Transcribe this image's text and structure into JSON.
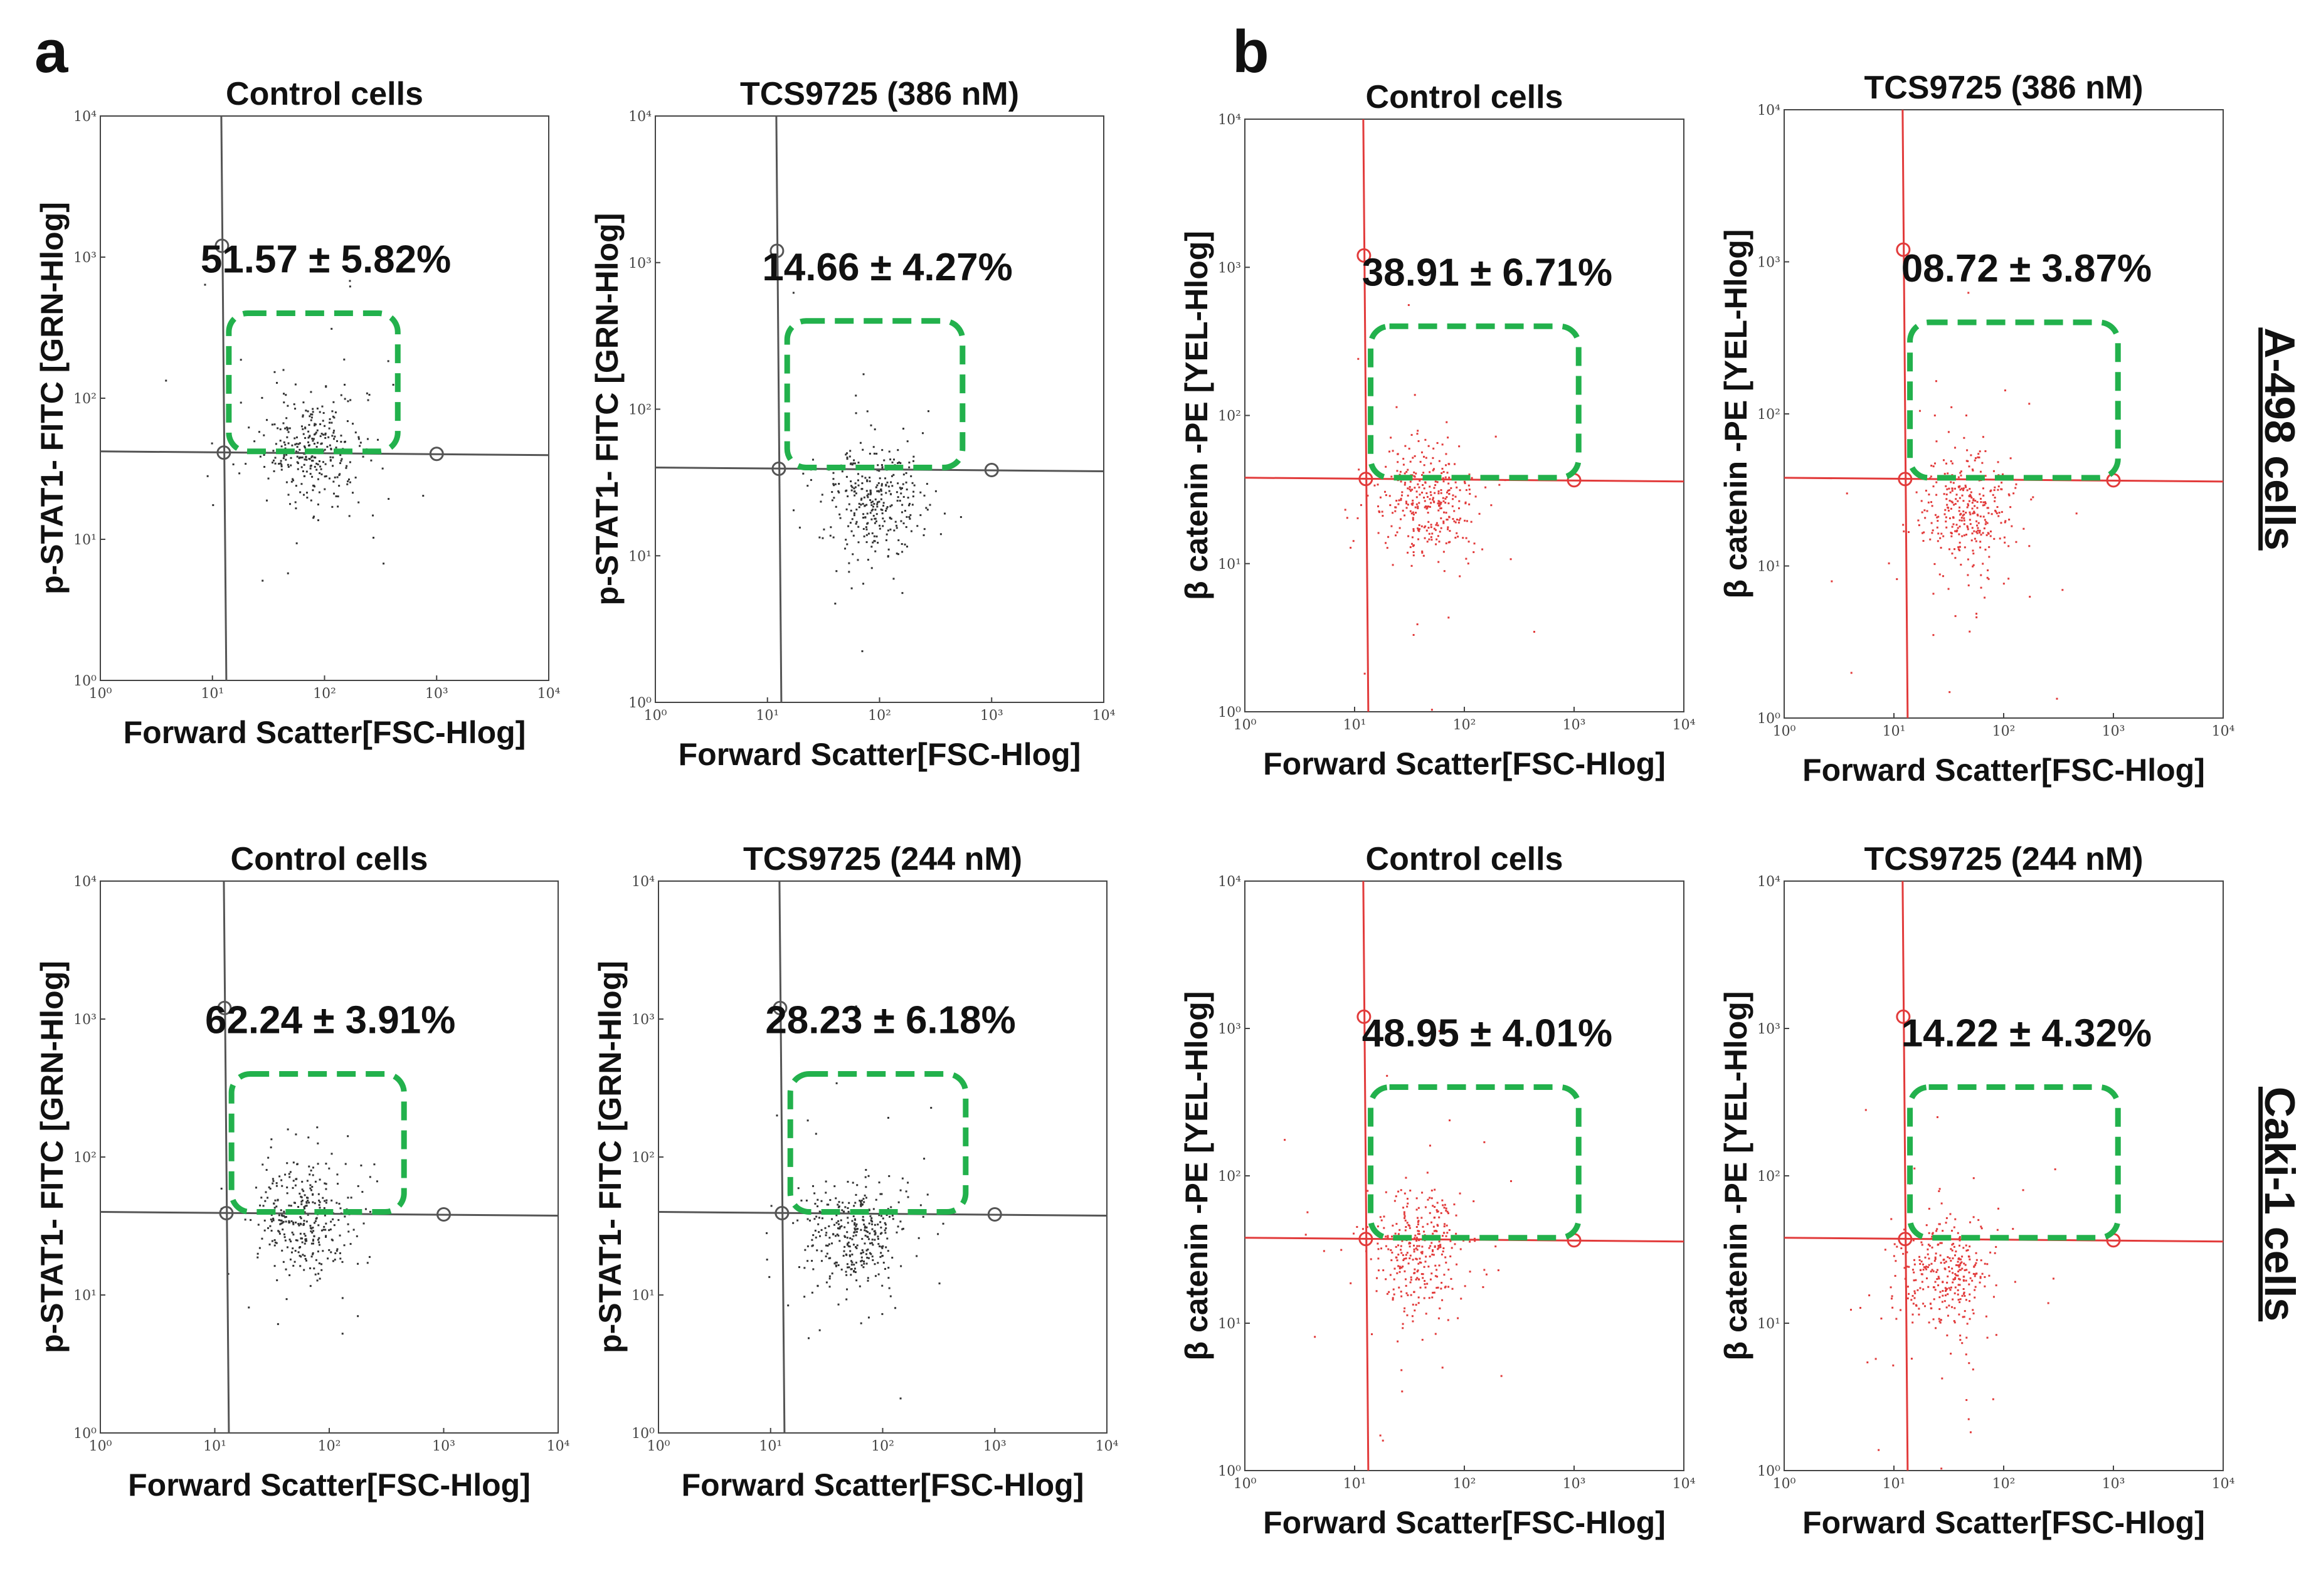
{
  "panel_letters": {
    "a": "a",
    "b": "b"
  },
  "row_labels": {
    "top": "A-498 cells",
    "bottom": "Caki-1 cells"
  },
  "chart_data": [
    {
      "id": "a-top-control",
      "type": "scatter",
      "title": "Control cells",
      "xlabel": "Forward Scatter[FSC-Hlog]",
      "ylabel": "p-STAT1- FITC [GRN-Hlog]",
      "annotation": "51.57 ± 5.82%",
      "color": "#333333",
      "xscale": "log",
      "yscale": "log",
      "xlim": [
        1,
        10000
      ],
      "ylim": [
        1,
        10000
      ],
      "x_ticks": [
        "10⁰",
        "10¹",
        "10²",
        "10³",
        "10⁴"
      ],
      "y_ticks": [
        "10⁰",
        "10¹",
        "10²",
        "10³",
        "10⁴"
      ],
      "x_gate": 12,
      "y_gate": 42,
      "gate_box": {
        "x": [
          14,
          450
        ],
        "y": [
          42,
          400
        ]
      },
      "cluster": {
        "x_center": 80,
        "y_center": 45,
        "count": 320
      }
    },
    {
      "id": "a-top-tcs",
      "type": "scatter",
      "title": "TCS9725 (386 nM)",
      "xlabel": "Forward Scatter[FSC-Hlog]",
      "ylabel": "p-STAT1- FITC [GRN-Hlog]",
      "annotation": "14.66 ± 4.27%",
      "color": "#333333",
      "xscale": "log",
      "yscale": "log",
      "xlim": [
        1,
        10000
      ],
      "ylim": [
        1,
        10000
      ],
      "x_ticks": [
        "10⁰",
        "10¹",
        "10²",
        "10³",
        "10⁴"
      ],
      "y_ticks": [
        "10⁰",
        "10¹",
        "10²",
        "10³",
        "10⁴"
      ],
      "x_gate": 12,
      "y_gate": 40,
      "gate_box": {
        "x": [
          15,
          550
        ],
        "y": [
          40,
          400
        ]
      },
      "cluster": {
        "x_center": 90,
        "y_center": 25,
        "count": 320
      }
    },
    {
      "id": "b-top-control",
      "type": "scatter",
      "title": "Control cells",
      "xlabel": "Forward Scatter[FSC-Hlog]",
      "ylabel": "β catenin -PE [YEL-Hlog]",
      "annotation": "38.91 ± 6.71%",
      "color": "#e23b3b",
      "xscale": "log",
      "yscale": "log",
      "xlim": [
        1,
        10000
      ],
      "ylim": [
        1,
        10000
      ],
      "x_ticks": [
        "10⁰",
        "10¹",
        "10²",
        "10³",
        "10⁴"
      ],
      "y_ticks": [
        "10⁰",
        "10¹",
        "10²",
        "10³",
        "10⁴"
      ],
      "x_gate": 12,
      "y_gate": 38,
      "gate_box": {
        "x": [
          14,
          1100
        ],
        "y": [
          38,
          400
        ]
      },
      "cluster": {
        "x_center": 45,
        "y_center": 28,
        "count": 340
      }
    },
    {
      "id": "b-top-tcs",
      "type": "scatter",
      "title": "TCS9725 (386 nM)",
      "xlabel": "Forward Scatter[FSC-Hlog]",
      "ylabel": "β catenin -PE [YEL-Hlog]",
      "annotation": "08.72 ± 3.87%",
      "color": "#e23b3b",
      "xscale": "log",
      "yscale": "log",
      "xlim": [
        1,
        10000
      ],
      "ylim": [
        1,
        10000
      ],
      "x_ticks": [
        "10⁰",
        "10¹",
        "10²",
        "10³",
        "10⁴"
      ],
      "y_ticks": [
        "10⁰",
        "10¹",
        "10²",
        "10³",
        "10⁴"
      ],
      "x_gate": 12,
      "y_gate": 38,
      "gate_box": {
        "x": [
          14,
          1100
        ],
        "y": [
          38,
          400
        ]
      },
      "cluster": {
        "x_center": 45,
        "y_center": 22,
        "count": 340
      }
    },
    {
      "id": "a-bottom-control",
      "type": "scatter",
      "title": "Control cells",
      "xlabel": "Forward Scatter[FSC-Hlog]",
      "ylabel": "p-STAT1- FITC [GRN-Hlog]",
      "annotation": "62.24 ± 3.91%",
      "color": "#333333",
      "xscale": "log",
      "yscale": "log",
      "xlim": [
        1,
        10000
      ],
      "ylim": [
        1,
        10000
      ],
      "x_ticks": [
        "10⁰",
        "10¹",
        "10²",
        "10³",
        "10⁴"
      ],
      "y_ticks": [
        "10⁰",
        "10¹",
        "10²",
        "10³",
        "10⁴"
      ],
      "x_gate": 12,
      "y_gate": 40,
      "gate_box": {
        "x": [
          14,
          450
        ],
        "y": [
          40,
          400
        ]
      },
      "cluster": {
        "x_center": 60,
        "y_center": 38,
        "count": 340
      }
    },
    {
      "id": "a-bottom-tcs",
      "type": "scatter",
      "title": "TCS9725 (244 nM)",
      "xlabel": "Forward Scatter[FSC-Hlog]",
      "ylabel": "p-STAT1- FITC [GRN-Hlog]",
      "annotation": "28.23 ± 6.18%",
      "color": "#333333",
      "xscale": "log",
      "yscale": "log",
      "xlim": [
        1,
        10000
      ],
      "ylim": [
        1,
        10000
      ],
      "x_ticks": [
        "10⁰",
        "10¹",
        "10²",
        "10³",
        "10⁴"
      ],
      "y_ticks": [
        "10⁰",
        "10¹",
        "10²",
        "10³",
        "10⁴"
      ],
      "x_gate": 12,
      "y_gate": 40,
      "gate_box": {
        "x": [
          15,
          550
        ],
        "y": [
          40,
          400
        ]
      },
      "cluster": {
        "x_center": 55,
        "y_center": 28,
        "count": 360
      }
    },
    {
      "id": "b-bottom-control",
      "type": "scatter",
      "title": "Control cells",
      "xlabel": "Forward Scatter[FSC-Hlog]",
      "ylabel": "β catenin -PE [YEL-Hlog]",
      "annotation": "48.95 ± 4.01%",
      "color": "#e23b3b",
      "xscale": "log",
      "yscale": "log",
      "xlim": [
        1,
        10000
      ],
      "ylim": [
        1,
        10000
      ],
      "x_ticks": [
        "10⁰",
        "10¹",
        "10²",
        "10³",
        "10⁴"
      ],
      "y_ticks": [
        "10⁰",
        "10¹",
        "10²",
        "10³",
        "10⁴"
      ],
      "x_gate": 12,
      "y_gate": 38,
      "gate_box": {
        "x": [
          14,
          1100
        ],
        "y": [
          38,
          400
        ]
      },
      "cluster": {
        "x_center": 40,
        "y_center": 32,
        "count": 340
      }
    },
    {
      "id": "b-bottom-tcs",
      "type": "scatter",
      "title": "TCS9725 (244 nM)",
      "xlabel": "Forward Scatter[FSC-Hlog]",
      "ylabel": "β catenin -PE [YEL-Hlog]",
      "annotation": "14.22 ± 4.32%",
      "color": "#e23b3b",
      "xscale": "log",
      "yscale": "log",
      "xlim": [
        1,
        10000
      ],
      "ylim": [
        1,
        10000
      ],
      "x_ticks": [
        "10⁰",
        "10¹",
        "10²",
        "10³",
        "10⁴"
      ],
      "y_ticks": [
        "10⁰",
        "10¹",
        "10²",
        "10³",
        "10⁴"
      ],
      "x_gate": 12,
      "y_gate": 38,
      "gate_box": {
        "x": [
          14,
          1100
        ],
        "y": [
          38,
          400
        ]
      },
      "cluster": {
        "x_center": 30,
        "y_center": 22,
        "count": 340
      }
    }
  ]
}
